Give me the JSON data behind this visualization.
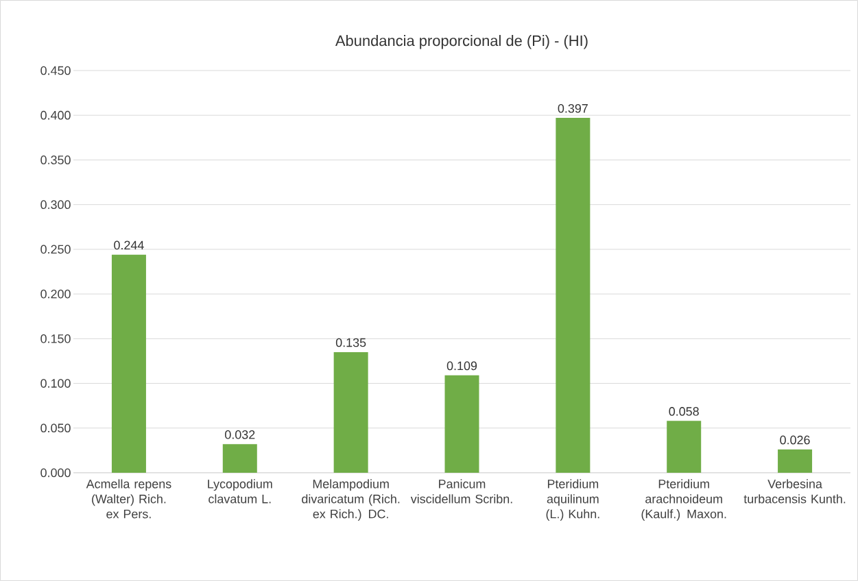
{
  "chart_data": {
    "type": "bar",
    "title": "Abundancia proporcional de (Pi) - (HI)",
    "categories": [
      "Acmella repens (Walter) Rich. ex Pers.",
      "Lycopodium clavatum L.",
      "Melampodium divaricatum (Rich. ex Rich.) DC.",
      "Panicum viscidellum Scribn.",
      "Pteridium aquilinum (L.) Kuhn.",
      "Pteridium arachnoideum (Kaulf.) Maxon.",
      "Verbesina turbacensis Kunth."
    ],
    "values": [
      0.244,
      0.032,
      0.135,
      0.109,
      0.397,
      0.058,
      0.026
    ],
    "color": "#70ad47",
    "ylim": [
      0,
      0.45
    ],
    "yticks": [
      {
        "value": 0,
        "label": "0.000"
      },
      {
        "value": 0.05,
        "label": "0.050"
      },
      {
        "value": 0.1,
        "label": "0.100"
      },
      {
        "value": 0.15,
        "label": "0.150"
      },
      {
        "value": 0.2,
        "label": "0.200"
      },
      {
        "value": 0.25,
        "label": "0.250"
      },
      {
        "value": 0.3,
        "label": "0.300"
      },
      {
        "value": 0.35,
        "label": "0.350"
      },
      {
        "value": 0.4,
        "label": "0.400"
      },
      {
        "value": 0.45,
        "label": "0.450"
      }
    ],
    "grid": "y",
    "data_labels": true
  }
}
